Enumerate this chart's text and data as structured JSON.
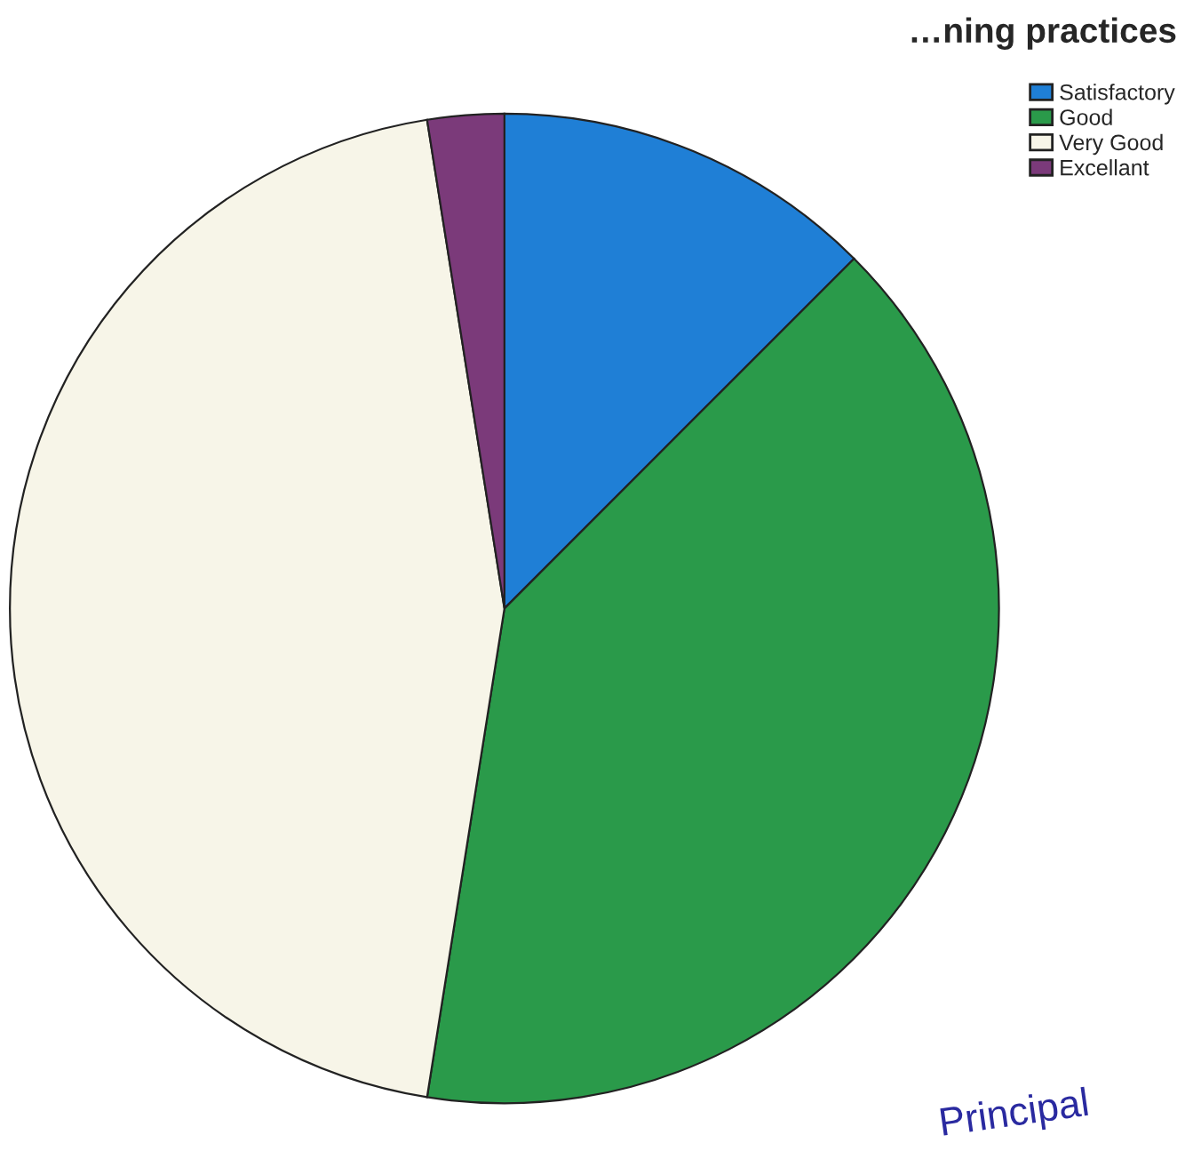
{
  "chart_data": {
    "type": "pie",
    "title": "…ning practices",
    "categories": [
      "Satisfactory",
      "Good",
      "Very Good",
      "Excellant"
    ],
    "values": [
      12.5,
      40,
      45,
      2.5
    ],
    "colors": [
      "#1f7fd6",
      "#2a9a4a",
      "#f7f5e8",
      "#7b3a7a"
    ],
    "legend": "top right",
    "annotations": [
      "Principal"
    ]
  }
}
